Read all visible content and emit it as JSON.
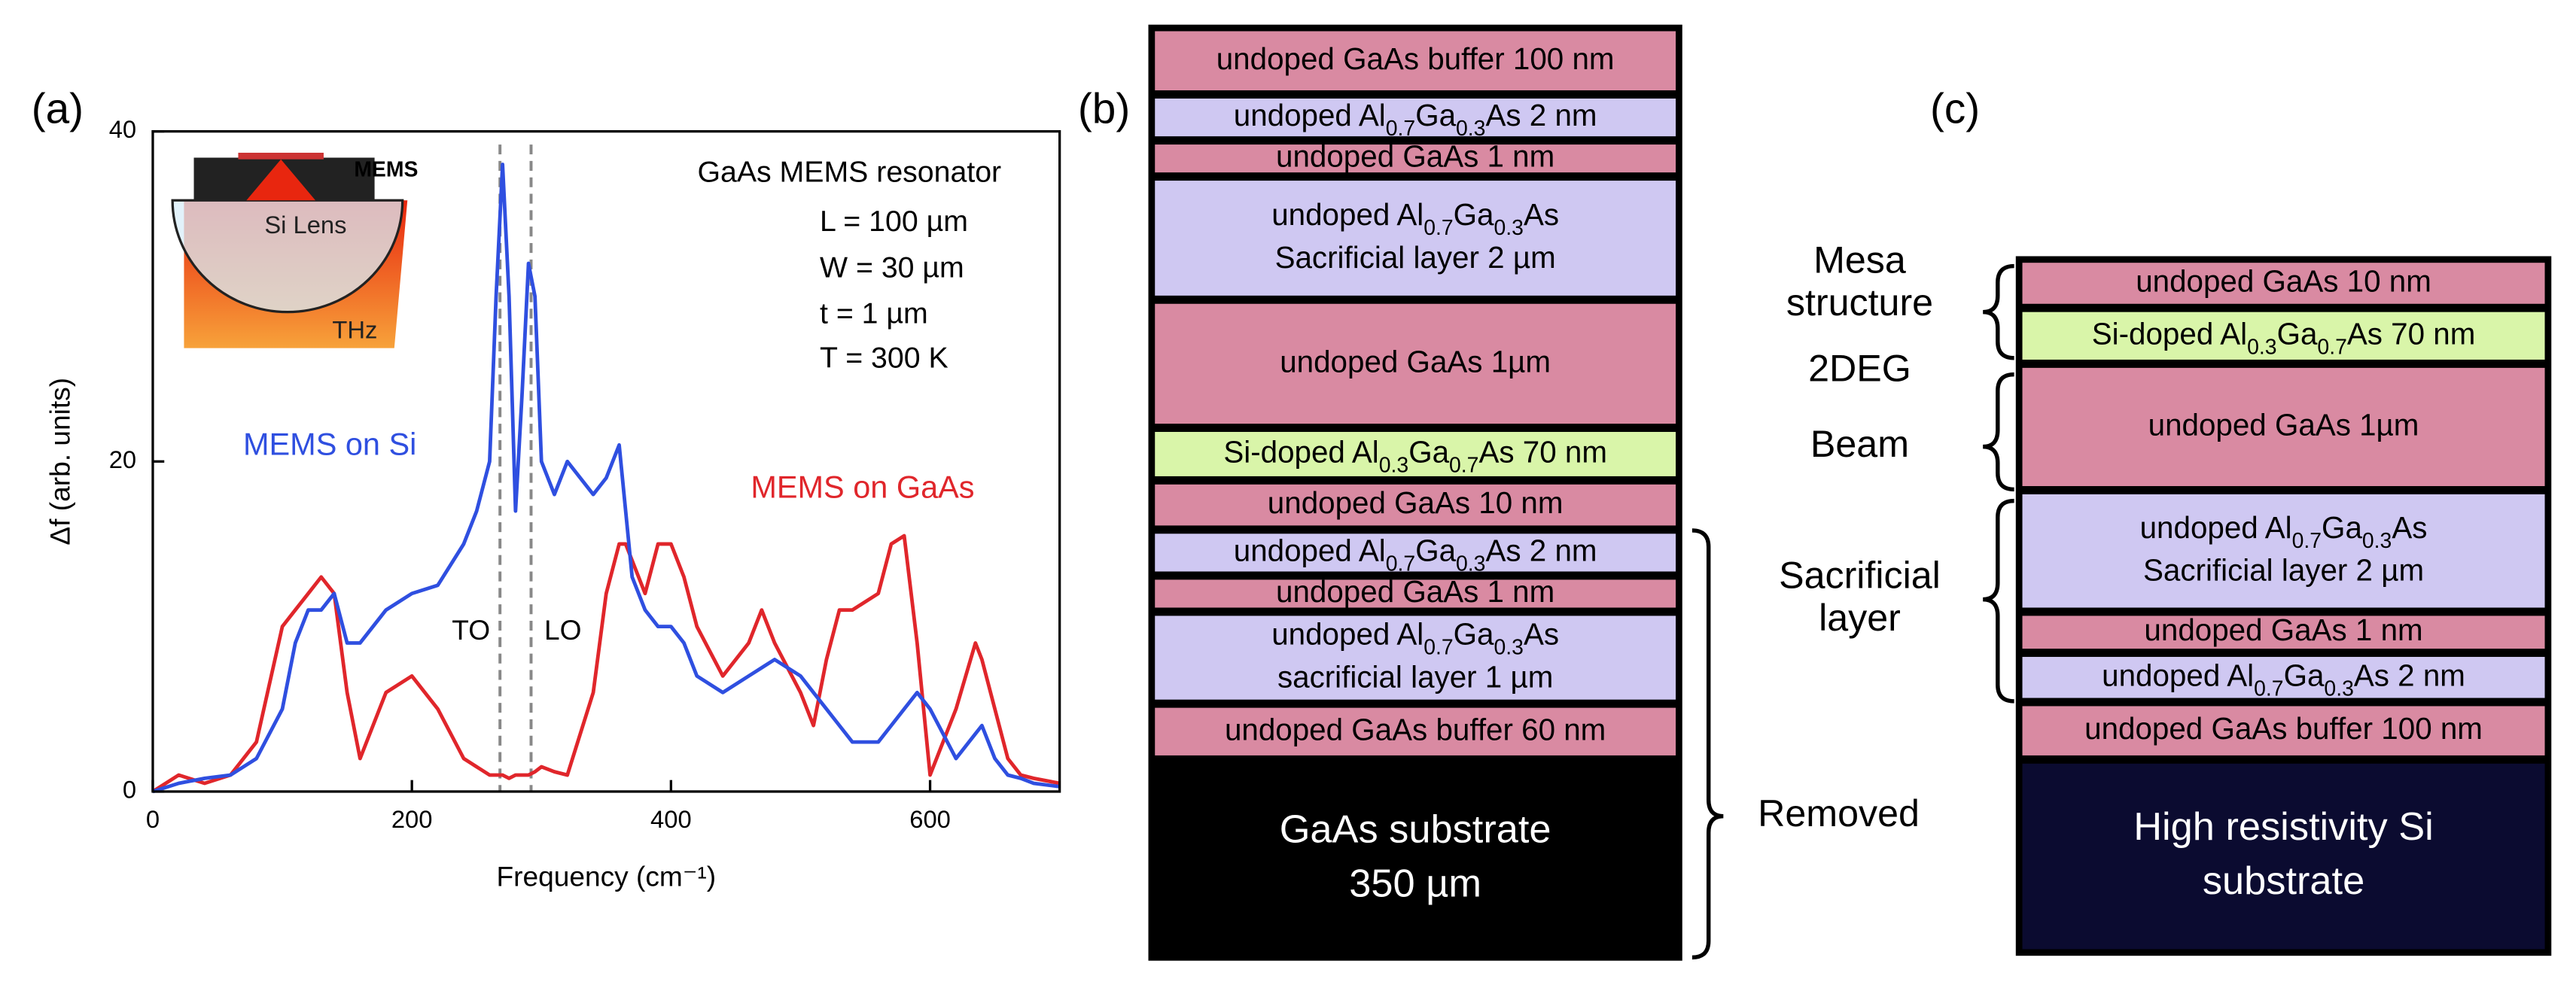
{
  "panel_labels": [
    "(a)",
    "(b)",
    "(c)"
  ],
  "chart_data": {
    "type": "line",
    "x_label": "Frequency (cm⁻¹)",
    "y_label": "Δf (arb. units)",
    "xlim": [
      0,
      700
    ],
    "ylim": [
      0,
      40
    ],
    "xticks": [
      0,
      200,
      400,
      600
    ],
    "yticks": [
      0,
      20,
      40
    ],
    "x": [
      0,
      20,
      40,
      60,
      80,
      100,
      110,
      120,
      130,
      140,
      150,
      160,
      180,
      200,
      220,
      240,
      250,
      260,
      265,
      270,
      275,
      280,
      285,
      290,
      295,
      300,
      310,
      320,
      340,
      350,
      360,
      365,
      370,
      380,
      390,
      400,
      410,
      420,
      440,
      460,
      470,
      480,
      500,
      510,
      520,
      530,
      540,
      560,
      570,
      580,
      590,
      600,
      620,
      635,
      640,
      650,
      660,
      670,
      680,
      700
    ],
    "series": [
      {
        "name": "MEMS on Si",
        "color": "#2f4fe0",
        "values": [
          0,
          0.5,
          0.8,
          1,
          2,
          5,
          9,
          11,
          11,
          12,
          9,
          9,
          11,
          12,
          12.5,
          15,
          17,
          20,
          30,
          38,
          30,
          17,
          24,
          32,
          30,
          20,
          18,
          20,
          18,
          19,
          21,
          17,
          13,
          11,
          10,
          10,
          9,
          7,
          6,
          7,
          7.5,
          8,
          7,
          6,
          5,
          4,
          3,
          3,
          4,
          5,
          6,
          5,
          2,
          3.5,
          4,
          2,
          1,
          0.8,
          0.5,
          0.3
        ]
      },
      {
        "name": "MEMS on GaAs",
        "color": "#e0262b",
        "values": [
          0,
          1,
          0.5,
          1,
          3,
          10,
          11,
          12,
          13,
          12,
          6,
          2,
          6,
          7,
          5,
          2,
          1.5,
          1,
          1,
          1,
          0.8,
          1,
          1,
          1,
          1.2,
          1.5,
          1.2,
          1,
          6,
          12,
          15,
          15,
          14,
          12,
          15,
          15,
          13,
          10,
          7,
          9,
          11,
          9,
          6,
          4,
          8,
          11,
          11,
          12,
          15,
          15.5,
          9,
          1,
          5,
          9,
          8,
          5,
          2,
          1,
          0.8,
          0.5
        ]
      }
    ],
    "ref_lines": [
      {
        "x": 268,
        "label": "TO"
      },
      {
        "x": 292,
        "label": "LO"
      }
    ],
    "annotations": [
      "GaAs MEMS resonator",
      "L = 100 µm",
      "W = 30 µm",
      "t = 1 µm",
      "T = 300 K"
    ],
    "inset_labels": [
      "MEMS",
      "Si Lens",
      "THz"
    ]
  },
  "stack_b": {
    "layers": [
      {
        "color": "#d98aa2",
        "lines": [
          [
            {
              "text": "undoped GaAs buffer 100 nm"
            }
          ]
        ]
      },
      {
        "color": "#cfc8f2",
        "lines": [
          [
            {
              "text": "undoped Al"
            },
            {
              "sub": "0.7"
            },
            {
              "text": "Ga"
            },
            {
              "sub": "0.3"
            },
            {
              "text": "As 2 nm"
            }
          ]
        ]
      },
      {
        "color": "#d98aa2",
        "lines": [
          [
            {
              "text": "undoped GaAs 1 nm"
            }
          ]
        ]
      },
      {
        "color": "#cfc8f2",
        "lines": [
          [
            {
              "text": "undoped Al"
            },
            {
              "sub": "0.7"
            },
            {
              "text": "Ga"
            },
            {
              "sub": "0.3"
            },
            {
              "text": "As"
            }
          ],
          [
            {
              "text": "Sacrificial layer 2 µm"
            }
          ]
        ]
      },
      {
        "color": "#d98aa2",
        "lines": [
          [
            {
              "text": "undoped GaAs 1µm"
            }
          ]
        ]
      },
      {
        "color": "#d9f5a9",
        "lines": [
          [
            {
              "text": "Si-doped Al"
            },
            {
              "sub": "0.3"
            },
            {
              "text": "Ga"
            },
            {
              "sub": "0.7"
            },
            {
              "text": "As 70 nm"
            }
          ]
        ]
      },
      {
        "color": "#d98aa2",
        "lines": [
          [
            {
              "text": "undoped GaAs 10 nm"
            }
          ]
        ]
      },
      {
        "color": "#cfc8f2",
        "lines": [
          [
            {
              "text": "undoped Al"
            },
            {
              "sub": "0.7"
            },
            {
              "text": "Ga"
            },
            {
              "sub": "0.3"
            },
            {
              "text": "As 2 nm"
            }
          ]
        ]
      },
      {
        "color": "#d98aa2",
        "lines": [
          [
            {
              "text": "undoped GaAs 1 nm"
            }
          ]
        ]
      },
      {
        "color": "#cfc8f2",
        "lines": [
          [
            {
              "text": "undoped Al"
            },
            {
              "sub": "0.7"
            },
            {
              "text": "Ga"
            },
            {
              "sub": "0.3"
            },
            {
              "text": "As"
            }
          ],
          [
            {
              "text": "sacrificial layer 1 µm"
            }
          ]
        ]
      },
      {
        "color": "#d98aa2",
        "lines": [
          [
            {
              "text": "undoped GaAs buffer 60 nm"
            }
          ]
        ]
      },
      {
        "color": "#000000",
        "lines": [
          [
            {
              "text": "GaAs substrate"
            }
          ],
          [
            {
              "text": "350 µm"
            }
          ]
        ]
      }
    ],
    "bracket_label": "Removed"
  },
  "stack_c": {
    "layers": [
      {
        "color": "#d98aa2",
        "lines": [
          [
            {
              "text": "undoped GaAs 10 nm"
            }
          ]
        ]
      },
      {
        "color": "#d9f5a9",
        "lines": [
          [
            {
              "text": "Si-doped Al"
            },
            {
              "sub": "0.3"
            },
            {
              "text": "Ga"
            },
            {
              "sub": "0.7"
            },
            {
              "text": "As 70 nm"
            }
          ]
        ]
      },
      {
        "color": "#d98aa2",
        "lines": [
          [
            {
              "text": "undoped GaAs 1µm"
            }
          ]
        ]
      },
      {
        "color": "#cfc8f2",
        "lines": [
          [
            {
              "text": "undoped Al"
            },
            {
              "sub": "0.7"
            },
            {
              "text": "Ga"
            },
            {
              "sub": "0.3"
            },
            {
              "text": "As"
            }
          ],
          [
            {
              "text": "Sacrificial layer 2 µm"
            }
          ]
        ]
      },
      {
        "color": "#d98aa2",
        "lines": [
          [
            {
              "text": "undoped GaAs 1 nm"
            }
          ]
        ]
      },
      {
        "color": "#cfc8f2",
        "lines": [
          [
            {
              "text": "undoped Al"
            },
            {
              "sub": "0.7"
            },
            {
              "text": "Ga"
            },
            {
              "sub": "0.3"
            },
            {
              "text": "As 2 nm"
            }
          ]
        ]
      },
      {
        "color": "#d98aa2",
        "lines": [
          [
            {
              "text": "undoped GaAs buffer 100 nm"
            }
          ]
        ]
      },
      {
        "color": "#0b0b30",
        "lines": [
          [
            {
              "text": "High resistivity Si"
            }
          ],
          [
            {
              "text": "substrate"
            }
          ]
        ]
      }
    ],
    "side_labels": [
      {
        "lines": [
          "Mesa",
          "structure"
        ]
      },
      {
        "lines": [
          "2DEG"
        ]
      },
      {
        "lines": [
          "Beam"
        ]
      },
      {
        "lines": [
          "Sacrificial",
          "layer"
        ]
      }
    ]
  }
}
